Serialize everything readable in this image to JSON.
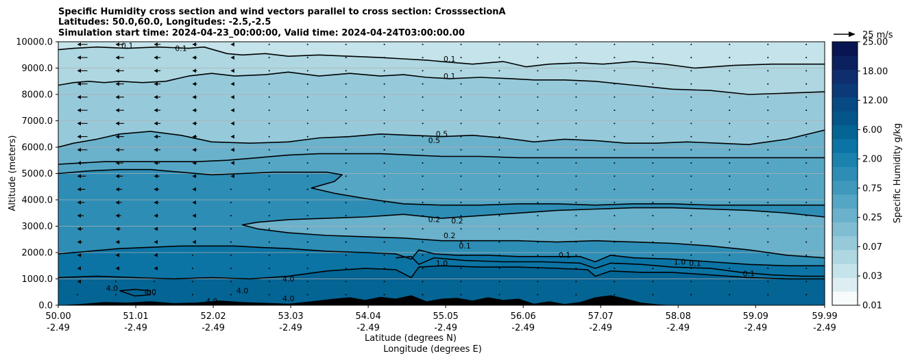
{
  "chart_data": {
    "type": "contour-cross-section",
    "title_lines": [
      "Specific Humidity cross section and wind vectors parallel to cross section: CrosssectionA",
      "Latitudes: 50.0,60.0, Longitudes: -2.5,-2.5",
      "Simulation start time: 2024-04-23_00:00:00, Valid time: 2024-04-24T03:00:00.00"
    ],
    "ylabel": "Altitude (meters)",
    "xlabel_lat": "Latitude (degrees N)",
    "xlabel_lon": "Longitude (degrees E)",
    "ylim": [
      0,
      10000
    ],
    "y_ticks": [
      0,
      1000,
      2000,
      3000,
      4000,
      5000,
      6000,
      7000,
      8000,
      9000,
      10000
    ],
    "y_tick_labels": [
      "0.0",
      "1000.0",
      "2000.0",
      "3000.0",
      "4000.0",
      "5000.0",
      "6000.0",
      "7000.0",
      "8000.0",
      "9000.0",
      "10000.0"
    ],
    "xlim": [
      50.0,
      59.99
    ],
    "x_ticks": [
      50.0,
      51.01,
      52.02,
      53.03,
      54.04,
      55.05,
      56.06,
      57.07,
      58.08,
      59.09,
      59.99
    ],
    "x_tick_lat_labels": [
      "50.00",
      "51.01",
      "52.02",
      "53.03",
      "54.04",
      "55.05",
      "56.06",
      "57.07",
      "58.08",
      "59.09",
      "59.99"
    ],
    "x_tick_lon_labels": [
      "-2.49",
      "-2.49",
      "-2.49",
      "-2.49",
      "-2.49",
      "-2.49",
      "-2.49",
      "-2.49",
      "-2.49",
      "-2.49",
      "-2.49"
    ],
    "colorbar": {
      "label": "Specific Humidity g/kg",
      "tick_labels": [
        "0.01",
        "0.03",
        "0.07",
        "0.25",
        "0.75",
        "2.00",
        "6.00",
        "12.00",
        "18.00",
        "25.00"
      ],
      "colors": [
        "#f7fbfc",
        "#ddeef2",
        "#c4e3ea",
        "#aed7e2",
        "#96cadb",
        "#80bdd2",
        "#6ab1cb",
        "#55a6c4",
        "#4099bc",
        "#2d8db5",
        "#1a82ad",
        "#0b74a4",
        "#046494",
        "#03558a",
        "#084a84",
        "#0c3a79",
        "#0e2e6e",
        "#0b205e",
        "#081551"
      ]
    },
    "quiver_key_label": "25 m/s",
    "contour_labels": [
      "0.1",
      "0.1",
      "0.1",
      "0.1",
      "0.5",
      "0.5",
      "0.2",
      "0.2",
      "0.2",
      "0.1",
      "1.0",
      "4.0",
      "4.0",
      "4.0",
      "4.0",
      "4.0",
      "4.0",
      "0.1",
      "0.1",
      "1.0",
      "0.1"
    ],
    "contour_lines": [
      {
        "level": "0.1",
        "x": [
          50.0,
          50.2,
          50.5,
          50.9,
          51.3,
          51.7,
          51.9,
          52.2,
          52.4,
          52.7,
          53.0,
          53.4,
          53.8,
          54.2,
          54.5,
          54.8,
          55.0,
          55.4,
          55.8,
          56.1,
          56.4,
          56.8,
          57.1,
          57.5,
          57.9,
          58.3,
          58.8,
          59.3,
          59.99
        ],
        "y": [
          9700,
          9750,
          9800,
          9750,
          9800,
          9750,
          9800,
          9550,
          9500,
          9550,
          9450,
          9500,
          9450,
          9400,
          9350,
          9300,
          9250,
          9150,
          9250,
          9050,
          9150,
          9200,
          9150,
          9250,
          9150,
          9000,
          9100,
          9150,
          9150
        ]
      },
      {
        "level": "0.1",
        "x": [
          50.0,
          50.2,
          50.4,
          50.6,
          50.8,
          51.1,
          51.4,
          51.7,
          52.0,
          52.3,
          52.7,
          53.0,
          53.4,
          53.8,
          54.2,
          54.5,
          54.8,
          55.1,
          55.5,
          55.9,
          56.2,
          56.6,
          57.0,
          57.5,
          58.0,
          58.5,
          59.0,
          59.5,
          59.99
        ],
        "y": [
          8350,
          8450,
          8500,
          8450,
          8500,
          8450,
          8500,
          8700,
          8800,
          8700,
          8750,
          8850,
          8700,
          8800,
          8700,
          8750,
          8650,
          8600,
          8650,
          8600,
          8550,
          8550,
          8500,
          8350,
          8200,
          8150,
          8000,
          8050,
          8100
        ]
      },
      {
        "level": "0.5",
        "x": [
          50.0,
          50.2,
          50.5,
          50.8,
          51.2,
          51.6,
          52.0,
          52.5,
          53.0,
          53.4,
          53.8,
          54.2,
          54.6,
          55.0,
          55.4,
          55.8,
          56.2,
          56.6,
          57.0,
          57.4,
          57.8,
          58.2,
          58.6,
          59.0,
          59.5,
          59.99
        ],
        "y": [
          6000,
          6150,
          6300,
          6500,
          6600,
          6450,
          6200,
          6150,
          6200,
          6350,
          6400,
          6500,
          6450,
          6400,
          6450,
          6350,
          6200,
          6300,
          6250,
          6150,
          6150,
          6200,
          6150,
          6100,
          6300,
          6650
        ]
      },
      {
        "level": "0.5",
        "x": [
          50.0,
          50.3,
          50.6,
          51.0,
          51.4,
          51.8,
          52.2,
          52.6,
          53.0,
          53.4,
          53.8,
          54.2,
          54.6,
          55.0,
          55.5,
          56.0,
          56.5,
          57.0,
          57.5,
          58.0,
          58.5,
          59.0,
          59.5,
          59.99
        ],
        "y": [
          5350,
          5400,
          5450,
          5450,
          5450,
          5450,
          5500,
          5600,
          5700,
          5750,
          5750,
          5750,
          5700,
          5650,
          5650,
          5600,
          5600,
          5600,
          5600,
          5600,
          5600,
          5600,
          5600,
          5600
        ]
      },
      {
        "level": "0.5",
        "x": [
          50.0,
          50.4,
          50.8,
          51.2,
          51.6,
          52.0,
          52.4,
          52.8,
          53.2,
          53.5,
          53.7,
          53.6,
          53.3,
          53.6,
          54.0,
          54.5,
          55.0,
          55.5,
          56.0,
          56.5,
          57.0,
          57.5,
          58.0,
          58.5,
          59.0,
          59.5,
          59.99
        ],
        "y": [
          5000,
          5100,
          5150,
          5150,
          5050,
          4950,
          5000,
          5050,
          5050,
          5050,
          4950,
          4700,
          4450,
          4250,
          4050,
          3850,
          3800,
          3800,
          3850,
          3850,
          3800,
          3850,
          3850,
          3800,
          3800,
          3800,
          3800
        ]
      },
      {
        "level": "0.2",
        "x": [
          59.99,
          59.5,
          59.0,
          58.5,
          58.0,
          57.5,
          57.0,
          56.5,
          56.0,
          55.5,
          55.0,
          54.5,
          54.0,
          53.5,
          53.0,
          52.6,
          52.4,
          52.6,
          53.0,
          53.5,
          54.0,
          54.5,
          55.0,
          55.5,
          56.0,
          56.5,
          57.0,
          57.5,
          58.0,
          58.5,
          59.0,
          59.5,
          59.99
        ],
        "y": [
          3350,
          3500,
          3600,
          3650,
          3700,
          3700,
          3650,
          3600,
          3500,
          3400,
          3300,
          3450,
          3350,
          3300,
          3250,
          3150,
          3050,
          2900,
          2750,
          2650,
          2600,
          2550,
          2450,
          2450,
          2450,
          2400,
          2450,
          2400,
          2350,
          2250,
          2100,
          1900,
          1800
        ]
      },
      {
        "level": "0.2",
        "x": [
          50.0,
          50.4,
          50.8,
          51.2,
          51.6,
          52.0,
          52.3,
          52.6,
          53.0,
          53.5,
          54.0,
          54.4,
          54.6,
          54.7,
          54.9,
          55.2,
          55.6,
          56.0,
          56.4,
          56.8,
          57.0,
          57.2,
          57.5,
          58.0,
          58.5,
          59.0,
          59.5,
          59.99
        ],
        "y": [
          1950,
          2050,
          2150,
          2200,
          2250,
          2250,
          2250,
          2200,
          2150,
          2050,
          2000,
          1950,
          1750,
          2100,
          1950,
          1900,
          1900,
          1850,
          1850,
          1850,
          1650,
          1900,
          1800,
          1750,
          1650,
          1550,
          1500,
          1500
        ]
      },
      {
        "level": "1.0",
        "x": [
          50.0,
          50.5,
          51.0,
          51.5,
          52.0,
          52.5,
          53.0,
          53.5,
          54.0,
          54.4,
          54.6,
          54.7,
          55.0,
          55.5,
          56.0,
          56.5,
          56.9,
          57.0,
          57.2,
          57.6,
          58.0,
          58.5,
          59.0,
          59.5,
          59.99
        ],
        "y": [
          1050,
          1100,
          1050,
          1000,
          1050,
          1000,
          1100,
          1300,
          1400,
          1350,
          1050,
          1450,
          1500,
          1450,
          1450,
          1400,
          1350,
          1100,
          1300,
          1250,
          1250,
          1150,
          1050,
          1000,
          1000
        ]
      },
      {
        "level": "0.1",
        "x": [
          54.4,
          54.6,
          54.7,
          54.9,
          55.3,
          55.8,
          56.3,
          56.8,
          57.0,
          57.2,
          57.6,
          58.0,
          58.5,
          58.9,
          59.3,
          59.7,
          59.99
        ],
        "y": [
          1800,
          1850,
          1550,
          1800,
          1700,
          1650,
          1650,
          1600,
          1400,
          1600,
          1550,
          1450,
          1400,
          1250,
          1150,
          1100,
          1100
        ]
      },
      {
        "level": "4.0",
        "x": [
          50.8,
          51.0,
          51.2,
          51.2,
          51.0,
          50.8
        ],
        "y": [
          550,
          600,
          550,
          400,
          350,
          550
        ]
      }
    ],
    "terrain": {
      "x": [
        50.0,
        50.3,
        50.6,
        50.9,
        51.2,
        51.5,
        51.8,
        52.1,
        52.4,
        52.7,
        53.0,
        53.3,
        53.6,
        53.8,
        54.0,
        54.2,
        54.4,
        54.6,
        54.8,
        55.0,
        55.2,
        55.4,
        55.6,
        55.8,
        56.0,
        56.2,
        56.4,
        56.6,
        56.8,
        57.0,
        57.2,
        57.4,
        57.6,
        57.8,
        58.0,
        59.99
      ],
      "y": [
        0,
        50,
        120,
        100,
        150,
        80,
        100,
        180,
        120,
        90,
        60,
        150,
        250,
        300,
        200,
        320,
        250,
        380,
        150,
        250,
        280,
        180,
        300,
        200,
        250,
        60,
        150,
        50,
        120,
        300,
        380,
        250,
        100,
        40,
        0,
        0
      ]
    }
  }
}
